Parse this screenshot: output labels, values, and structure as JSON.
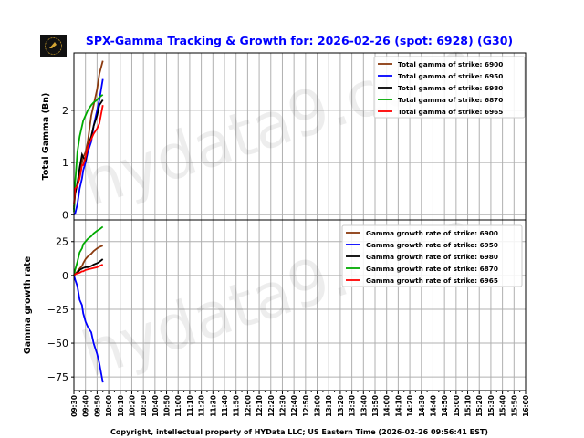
{
  "title": "SPX-Gamma Tracking & Growth for: 2026-02-26 (spot: 6928) (G30)",
  "footer": "Copyright, intellectual property of HYData LLC; US Eastern Time (2026-02-26 09:56:41 EST)",
  "watermark": "hydata9.com",
  "logo_text": "HYData",
  "colors": {
    "title": "#0000ff",
    "6900": "#8b3a0f",
    "6950": "#0000ff",
    "6980": "#000000",
    "6870": "#00aa00",
    "6965": "#ff0000"
  },
  "chart_data": [
    {
      "type": "line",
      "ylabel": "Total Gamma (Bn)",
      "ylim": [
        -0.1,
        3.1
      ],
      "yticks": [
        0,
        1,
        2
      ],
      "grid": true,
      "legend": "top-right",
      "x": [
        "09:30",
        "09:31",
        "09:33",
        "09:35",
        "09:37",
        "09:38",
        "09:40",
        "09:42",
        "09:45",
        "09:47",
        "09:50",
        "09:52",
        "09:55"
      ],
      "series": [
        {
          "name": "Total gamma of strike: 6900",
          "color": "#8b3a0f",
          "values": [
            0.15,
            0.4,
            0.6,
            0.8,
            1.0,
            1.1,
            1.2,
            1.4,
            1.9,
            2.1,
            2.4,
            2.7,
            2.95
          ]
        },
        {
          "name": "Total gamma of strike: 6950",
          "color": "#0000ff",
          "values": [
            0.0,
            0.02,
            0.2,
            0.5,
            0.7,
            0.85,
            1.0,
            1.2,
            1.4,
            1.7,
            2.0,
            2.2,
            2.6
          ]
        },
        {
          "name": "Total gamma of strike: 6980",
          "color": "#000000",
          "values": [
            0.1,
            0.4,
            0.6,
            0.9,
            1.15,
            1.1,
            1.05,
            1.3,
            1.5,
            1.7,
            1.9,
            2.1,
            2.2
          ]
        },
        {
          "name": "Total gamma of strike: 6870",
          "color": "#00aa00",
          "values": [
            0.05,
            0.6,
            1.2,
            1.5,
            1.7,
            1.8,
            1.9,
            2.0,
            2.1,
            2.15,
            2.2,
            2.25,
            2.3
          ]
        },
        {
          "name": "Total gamma of strike: 6965",
          "color": "#ff0000",
          "values": [
            0.2,
            0.5,
            0.55,
            0.7,
            0.95,
            0.95,
            1.1,
            1.3,
            1.45,
            1.55,
            1.65,
            1.75,
            2.1
          ]
        }
      ]
    },
    {
      "type": "line",
      "ylabel": "Gamma growth rate",
      "ylim": [
        -85,
        41
      ],
      "yticks": [
        25,
        0,
        -25,
        -50,
        -75
      ],
      "grid": true,
      "legend": "top-right",
      "x": [
        "09:30",
        "09:31",
        "09:33",
        "09:35",
        "09:37",
        "09:38",
        "09:40",
        "09:42",
        "09:45",
        "09:47",
        "09:50",
        "09:52",
        "09:55"
      ],
      "xticks": [
        "09:30",
        "09:40",
        "09:50",
        "10:00",
        "10:10",
        "10:20",
        "10:30",
        "10:40",
        "10:50",
        "11:00",
        "11:10",
        "11:20",
        "11:30",
        "11:40",
        "11:50",
        "12:00",
        "12:10",
        "12:20",
        "12:30",
        "12:40",
        "12:50",
        "13:00",
        "13:10",
        "13:20",
        "13:30",
        "13:40",
        "13:50",
        "14:00",
        "14:10",
        "14:20",
        "14:30",
        "14:40",
        "14:50",
        "15:00",
        "15:10",
        "15:20",
        "15:30",
        "15:40",
        "15:50",
        "16:00"
      ],
      "series": [
        {
          "name": "Gamma growth rate of strike: 6900",
          "color": "#8b3a0f",
          "values": [
            0,
            1,
            3,
            5,
            7,
            9,
            12,
            14,
            16,
            18,
            20,
            21,
            22
          ]
        },
        {
          "name": "Gamma growth rate of strike: 6950",
          "color": "#0000ff",
          "values": [
            0,
            -3,
            -8,
            -18,
            -22,
            -28,
            -34,
            -38,
            -42,
            -50,
            -58,
            -65,
            -79
          ]
        },
        {
          "name": "Gamma growth rate of strike: 6980",
          "color": "#000000",
          "values": [
            0,
            1,
            2,
            4,
            5,
            5.5,
            6,
            6,
            7,
            8,
            9,
            10,
            12
          ]
        },
        {
          "name": "Gamma growth rate of strike: 6870",
          "color": "#00aa00",
          "values": [
            0,
            4,
            10,
            17,
            20,
            23,
            25,
            27,
            29,
            31,
            33,
            34,
            36
          ]
        },
        {
          "name": "Gamma growth rate of strike: 6965",
          "color": "#ff0000",
          "values": [
            0,
            1,
            1.5,
            2,
            3,
            3,
            4,
            4.5,
            5,
            5.5,
            6,
            7,
            8
          ]
        }
      ]
    }
  ]
}
